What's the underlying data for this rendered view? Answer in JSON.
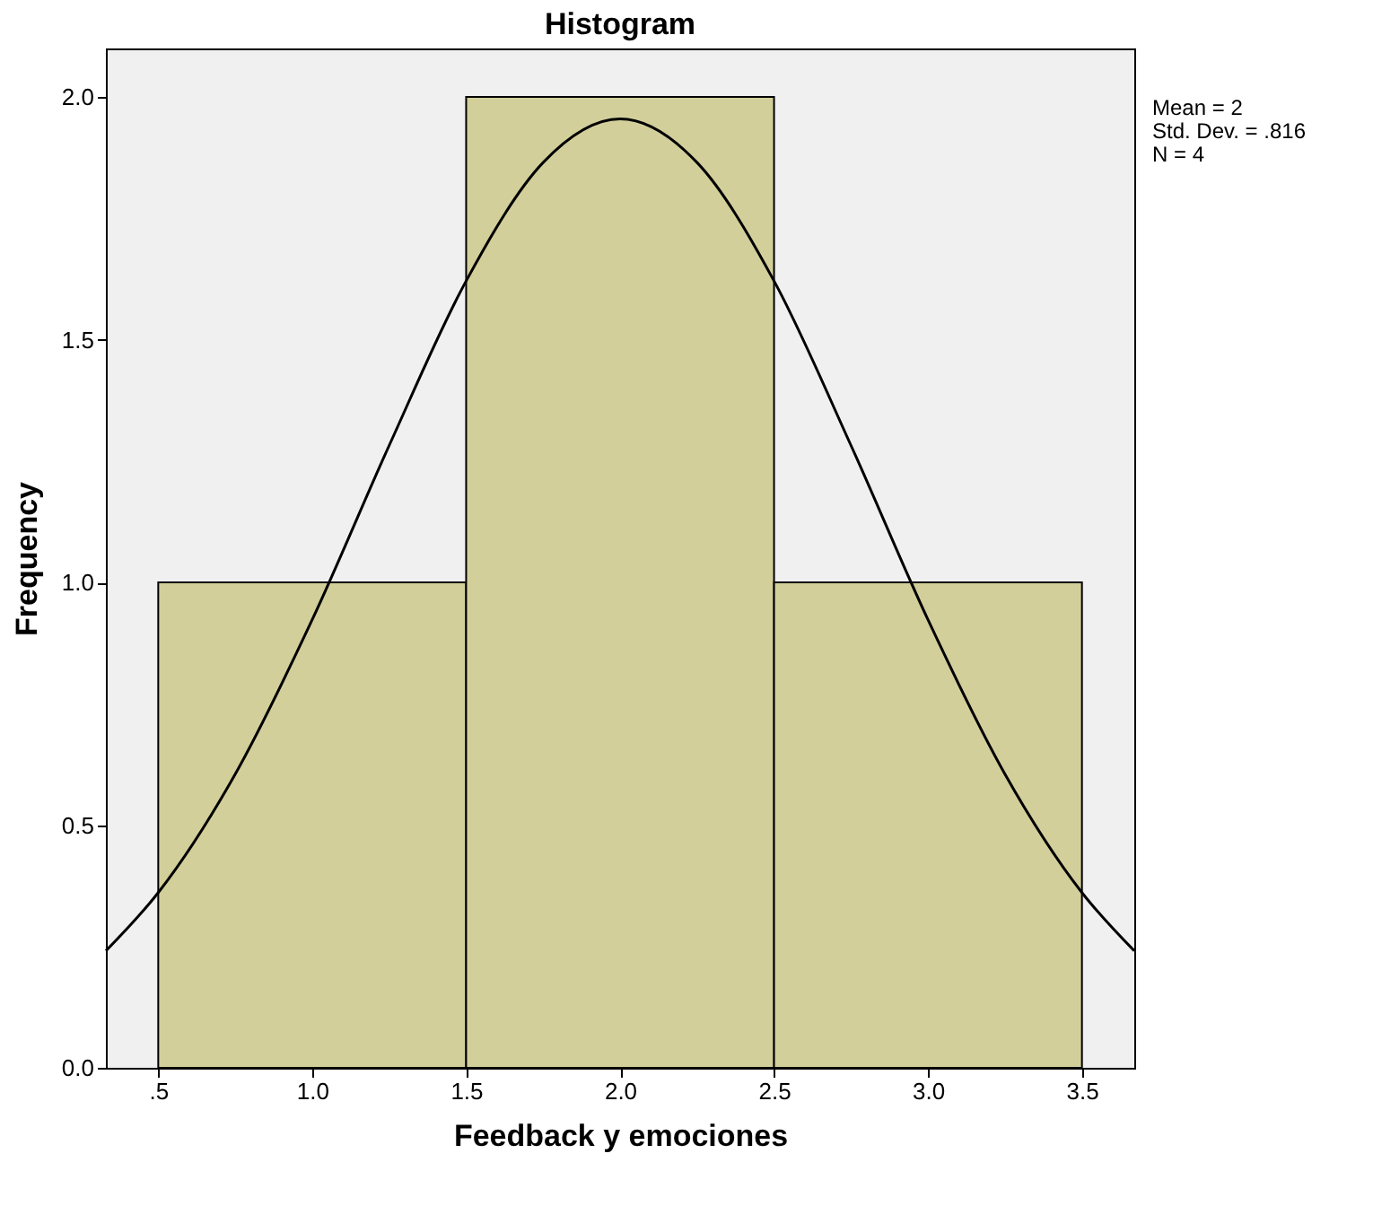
{
  "chart_data": {
    "type": "histogram",
    "title": "Histogram",
    "xlabel": "Feedback y emociones",
    "ylabel": "Frequency",
    "bins": [
      0.5,
      1.5,
      2.5,
      3.5
    ],
    "values": [
      1,
      2,
      1
    ],
    "color": "#d3cf9b",
    "series": [
      {
        "type": "line",
        "color": "#000000",
        "x": [
          0.33,
          0.5,
          0.75,
          1.0,
          1.25,
          1.5,
          1.75,
          2.0,
          2.25,
          2.5,
          2.75,
          3.0,
          3.25,
          3.5,
          3.67
        ],
        "values": [
          0.241,
          0.361,
          0.605,
          0.923,
          1.282,
          1.621,
          1.865,
          1.955,
          1.865,
          1.621,
          1.282,
          0.923,
          0.605,
          0.361,
          0.241
        ]
      }
    ],
    "xlim": [
      0.33,
      3.67
    ],
    "ylim": [
      0,
      2.1
    ],
    "xticks": [
      {
        "value": 0.5,
        "label": ".5"
      },
      {
        "value": 1.0,
        "label": "1.0"
      },
      {
        "value": 1.5,
        "label": "1.5"
      },
      {
        "value": 2.0,
        "label": "2.0"
      },
      {
        "value": 2.5,
        "label": "2.5"
      },
      {
        "value": 3.0,
        "label": "3.0"
      },
      {
        "value": 3.5,
        "label": "3.5"
      }
    ],
    "yticks": [
      {
        "value": 0,
        "label": "0.0"
      },
      {
        "value": 0.5,
        "label": "0.5"
      },
      {
        "value": 1.0,
        "label": "1.0"
      },
      {
        "value": 1.5,
        "label": "1.5"
      },
      {
        "value": 2.0,
        "label": "2.0"
      }
    ],
    "annotations": [
      "Mean = 2",
      "Std. Dev. = .816",
      "N = 4"
    ],
    "grid": false
  }
}
